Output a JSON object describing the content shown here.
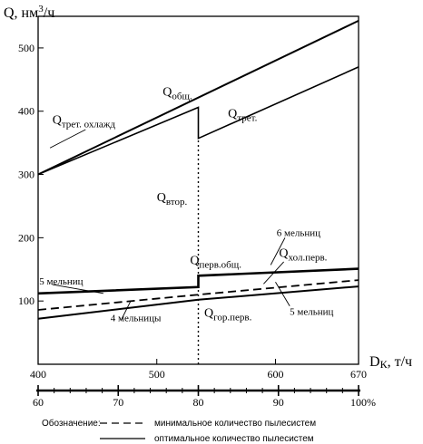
{
  "chart_data": {
    "type": "line",
    "y_axis": {
      "label_main": "Q, нм",
      "label_sup": "3",
      "label_tail": "/ч",
      "range": [
        0,
        550
      ],
      "ticks": [
        100,
        200,
        300,
        400,
        500
      ]
    },
    "x_axis": {
      "label_main": "D",
      "label_sub": "К",
      "label_tail": ", т/ч",
      "range": [
        400,
        670
      ],
      "ticks": [
        400,
        500,
        600,
        670
      ]
    },
    "pct_axis": {
      "labels": [
        {
          "x": 400,
          "text": "60"
        },
        {
          "x": 467.5,
          "text": "70"
        },
        {
          "x": 535,
          "text": "80"
        },
        {
          "x": 602.5,
          "text": "90"
        },
        {
          "x": 670,
          "text": "100"
        }
      ],
      "unit": "%"
    },
    "series": [
      {
        "style": "solid",
        "width": 2,
        "points": [
          [
            400,
            300
          ],
          [
            670,
            543
          ]
        ]
      },
      {
        "style": "solid",
        "width": 1.6,
        "points": [
          [
            400,
            300
          ],
          [
            535,
            406
          ],
          [
            535,
            357
          ],
          [
            670,
            470
          ]
        ]
      },
      {
        "style": "solid",
        "width": 2.6,
        "points": [
          [
            400,
            112
          ],
          [
            535,
            122
          ],
          [
            535,
            140
          ],
          [
            670,
            151
          ]
        ]
      },
      {
        "style": "dashed",
        "width": 1.8,
        "points": [
          [
            400,
            86
          ],
          [
            535,
            110
          ],
          [
            670,
            133
          ]
        ]
      },
      {
        "style": "solid",
        "width": 2,
        "points": [
          [
            400,
            72
          ],
          [
            535,
            102
          ],
          [
            670,
            123
          ]
        ]
      }
    ],
    "annotations": [
      {
        "main": "Q",
        "sub": "общ.",
        "x": 505,
        "y": 425
      },
      {
        "main": "Q",
        "sub": "трет.",
        "x": 560,
        "y": 390
      },
      {
        "main": "Q",
        "sub": "трет. охлажд",
        "x": 412,
        "y": 380
      },
      {
        "main": "Q",
        "sub": "втор.",
        "x": 500,
        "y": 258
      },
      {
        "main": "Q",
        "sub": "перв.общ.",
        "x": 528,
        "y": 158
      },
      {
        "main": "Q",
        "sub": "хол.перв.",
        "x": 603,
        "y": 170
      },
      {
        "main": "Q",
        "sub": "гор.перв.",
        "x": 540,
        "y": 75
      },
      {
        "main": "6 мельниц",
        "sub": "",
        "x": 601,
        "y": 203
      },
      {
        "main": "5 мельниц",
        "sub": "",
        "x": 401,
        "y": 126
      },
      {
        "main": "5 мельниц",
        "sub": "",
        "x": 612,
        "y": 78
      },
      {
        "main": "4 мельницы",
        "sub": "",
        "x": 461,
        "y": 68
      }
    ],
    "legend": {
      "title": "Обозначение:",
      "items": [
        {
          "style": "dashed",
          "text": "минимальное количество пылесистем"
        },
        {
          "style": "solid",
          "text": "оптимальное количество пылесистем"
        }
      ]
    },
    "grid": false
  }
}
